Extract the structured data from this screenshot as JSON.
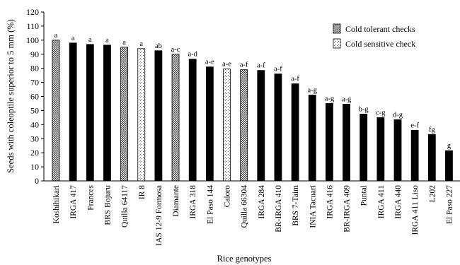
{
  "chart_data": {
    "type": "bar",
    "title": "",
    "xlabel": "Rice genotypes",
    "ylabel": "Seeds with coleoptile superior to 5 mm (%)",
    "ylim": [
      0,
      120
    ],
    "yticks": [
      0,
      10,
      20,
      30,
      40,
      50,
      60,
      70,
      80,
      90,
      100,
      110,
      120
    ],
    "grid": false,
    "legend_position": "top-right",
    "categories": [
      "Koshihikari",
      "IRGA 417",
      "Frances",
      "BRS Bojuru",
      "Quilla 64117",
      "IR 8",
      "IAS 12-9 Formosa",
      "Diamante",
      "IRGA 318",
      "El Paso 144",
      "Caloro",
      "Quilla 66304",
      "IRGA 284",
      "BR-IRGA 410",
      "BRS 7-Taim",
      "INIA Tacuari",
      "IRGA 416",
      "BR-IRGA 409",
      "Puntal",
      "IRGA 411",
      "IRGA 440",
      "IRGA 411 Liso",
      "L202",
      "El Paso 227"
    ],
    "values": [
      100,
      98,
      97,
      96.5,
      95,
      94,
      92.5,
      90,
      86.5,
      81,
      79.5,
      79,
      78.5,
      76,
      69,
      61,
      55,
      54.5,
      47.5,
      45,
      43.5,
      36,
      33,
      21.5
    ],
    "letters": [
      "a",
      "a",
      "a",
      "a",
      "a",
      "a",
      "ab",
      "a-c",
      "a-d",
      "a-e",
      "a-e",
      "a-f",
      "a-f",
      "a-f",
      "a-f",
      "a-g",
      "a-g",
      "a-g",
      "b-g",
      "c-g",
      "d-g",
      "e-f",
      "fg",
      "g"
    ],
    "groups": [
      "tolerant",
      "solid",
      "solid",
      "solid",
      "tolerant",
      "sensitive",
      "solid",
      "tolerant",
      "solid",
      "solid",
      "sensitive",
      "tolerant",
      "solid",
      "solid",
      "solid",
      "solid",
      "solid",
      "solid",
      "solid",
      "solid",
      "solid",
      "solid",
      "solid",
      "solid"
    ],
    "legend": [
      {
        "key": "tolerant",
        "label": "Cold tolerant checks"
      },
      {
        "key": "sensitive",
        "label": "Cold sensitive check"
      }
    ]
  }
}
